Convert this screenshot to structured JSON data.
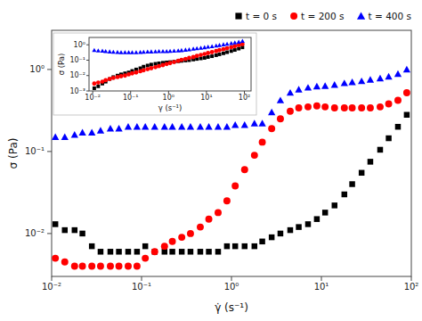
{
  "chart_data": [
    {
      "type": "scatter",
      "xlabel": "γ̇ (s⁻¹)",
      "ylabel": "σ (Pa)",
      "log": true,
      "grid": false,
      "legend": "upper right",
      "xlim": [
        0.01,
        100
      ],
      "ylim": [
        0.003,
        3.0
      ],
      "xticks": [
        {
          "value": 0.01,
          "label": "10⁻²"
        },
        {
          "value": 0.1,
          "label": "10⁻¹"
        },
        {
          "value": 1,
          "label": "10⁰"
        },
        {
          "value": 10,
          "label": "10¹"
        },
        {
          "value": 100,
          "label": "10²"
        }
      ],
      "yticks": [
        {
          "value": 0.01,
          "label": "10⁻²"
        },
        {
          "value": 0.1,
          "label": "10⁻¹"
        },
        {
          "value": 1,
          "label": "10⁰"
        }
      ],
      "x": [
        0.011,
        0.014,
        0.018,
        0.022,
        0.028,
        0.035,
        0.045,
        0.056,
        0.071,
        0.089,
        0.11,
        0.14,
        0.18,
        0.22,
        0.28,
        0.35,
        0.45,
        0.56,
        0.71,
        0.89,
        1.1,
        1.4,
        1.8,
        2.2,
        2.8,
        3.5,
        4.5,
        5.6,
        7.1,
        8.9,
        11,
        14,
        18,
        22,
        28,
        35,
        45,
        56,
        71,
        89
      ],
      "series": [
        {
          "name": "t = 0 s",
          "color": "black",
          "marker": "square",
          "values": [
            0.013,
            0.011,
            0.011,
            0.01,
            0.007,
            0.006,
            0.006,
            0.006,
            0.006,
            0.006,
            0.007,
            0.006,
            0.006,
            0.006,
            0.006,
            0.006,
            0.006,
            0.006,
            0.006,
            0.007,
            0.007,
            0.007,
            0.007,
            0.008,
            0.009,
            0.01,
            0.011,
            0.012,
            0.013,
            0.015,
            0.018,
            0.022,
            0.03,
            0.04,
            0.055,
            0.075,
            0.105,
            0.145,
            0.2,
            0.28
          ]
        },
        {
          "name": "t = 200 s",
          "color": "red",
          "marker": "circle",
          "values": [
            0.005,
            0.0045,
            0.004,
            0.004,
            0.004,
            0.004,
            0.004,
            0.004,
            0.004,
            0.004,
            0.005,
            0.006,
            0.007,
            0.008,
            0.009,
            0.01,
            0.012,
            0.015,
            0.018,
            0.025,
            0.038,
            0.06,
            0.09,
            0.13,
            0.19,
            0.25,
            0.31,
            0.34,
            0.35,
            0.36,
            0.35,
            0.34,
            0.34,
            0.34,
            0.34,
            0.34,
            0.35,
            0.38,
            0.42,
            0.52
          ]
        },
        {
          "name": "t = 400 s",
          "color": "blue",
          "marker": "triangle",
          "values": [
            0.15,
            0.15,
            0.16,
            0.17,
            0.17,
            0.18,
            0.19,
            0.19,
            0.2,
            0.2,
            0.2,
            0.2,
            0.2,
            0.2,
            0.2,
            0.2,
            0.2,
            0.2,
            0.2,
            0.2,
            0.21,
            0.21,
            0.22,
            0.22,
            0.3,
            0.42,
            0.52,
            0.57,
            0.6,
            0.62,
            0.63,
            0.65,
            0.68,
            0.7,
            0.72,
            0.75,
            0.78,
            0.82,
            0.88,
            1.0
          ]
        }
      ]
    },
    {
      "type": "scatter",
      "xlabel": "γ (s⁻¹)",
      "ylabel": "σ (Pa)",
      "log": true,
      "grid": false,
      "xlim": [
        0.008,
        150
      ],
      "ylim": [
        0.001,
        3.0
      ],
      "xticks": [
        {
          "value": 0.01,
          "label": "10⁻²"
        },
        {
          "value": 0.1,
          "label": "10⁻¹"
        },
        {
          "value": 1,
          "label": "10⁰"
        },
        {
          "value": 10,
          "label": "10¹"
        },
        {
          "value": 100,
          "label": "10²"
        }
      ],
      "yticks": [
        {
          "value": 0.001,
          "label": "10⁻³"
        },
        {
          "value": 0.01,
          "label": "10⁻²"
        },
        {
          "value": 0.1,
          "label": "10⁻¹"
        },
        {
          "value": 1,
          "label": "10⁰"
        }
      ],
      "x": [
        0.011,
        0.014,
        0.018,
        0.022,
        0.028,
        0.035,
        0.045,
        0.056,
        0.071,
        0.089,
        0.11,
        0.14,
        0.18,
        0.22,
        0.28,
        0.35,
        0.45,
        0.56,
        0.71,
        0.89,
        1.1,
        1.4,
        1.8,
        2.2,
        2.8,
        3.5,
        4.5,
        5.6,
        7.1,
        8.9,
        11,
        14,
        18,
        22,
        28,
        35,
        45,
        56,
        71,
        89
      ],
      "series": [
        {
          "color": "black",
          "marker": "square",
          "values": [
            0.0015,
            0.002,
            0.003,
            0.004,
            0.006,
            0.008,
            0.01,
            0.012,
            0.014,
            0.016,
            0.02,
            0.025,
            0.03,
            0.038,
            0.045,
            0.052,
            0.058,
            0.063,
            0.068,
            0.072,
            0.075,
            0.08,
            0.085,
            0.09,
            0.095,
            0.1,
            0.11,
            0.12,
            0.13,
            0.14,
            0.16,
            0.18,
            0.21,
            0.24,
            0.28,
            0.33,
            0.39,
            0.46,
            0.56,
            0.68
          ]
        },
        {
          "color": "red",
          "marker": "circle",
          "values": [
            0.003,
            0.0035,
            0.004,
            0.005,
            0.006,
            0.007,
            0.008,
            0.009,
            0.01,
            0.012,
            0.014,
            0.016,
            0.019,
            0.022,
            0.026,
            0.03,
            0.035,
            0.041,
            0.048,
            0.056,
            0.065,
            0.076,
            0.09,
            0.105,
            0.12,
            0.14,
            0.16,
            0.19,
            0.22,
            0.25,
            0.29,
            0.33,
            0.39,
            0.45,
            0.52,
            0.6,
            0.7,
            0.82,
            0.95,
            1.1
          ]
        },
        {
          "color": "blue",
          "marker": "triangle",
          "values": [
            0.45,
            0.42,
            0.4,
            0.38,
            0.36,
            0.34,
            0.33,
            0.32,
            0.32,
            0.32,
            0.32,
            0.32,
            0.33,
            0.34,
            0.35,
            0.36,
            0.37,
            0.38,
            0.38,
            0.38,
            0.39,
            0.4,
            0.42,
            0.44,
            0.47,
            0.5,
            0.54,
            0.58,
            0.63,
            0.68,
            0.74,
            0.8,
            0.88,
            0.95,
            1.05,
            1.15,
            1.27,
            1.4,
            1.55,
            1.75
          ]
        }
      ]
    }
  ]
}
